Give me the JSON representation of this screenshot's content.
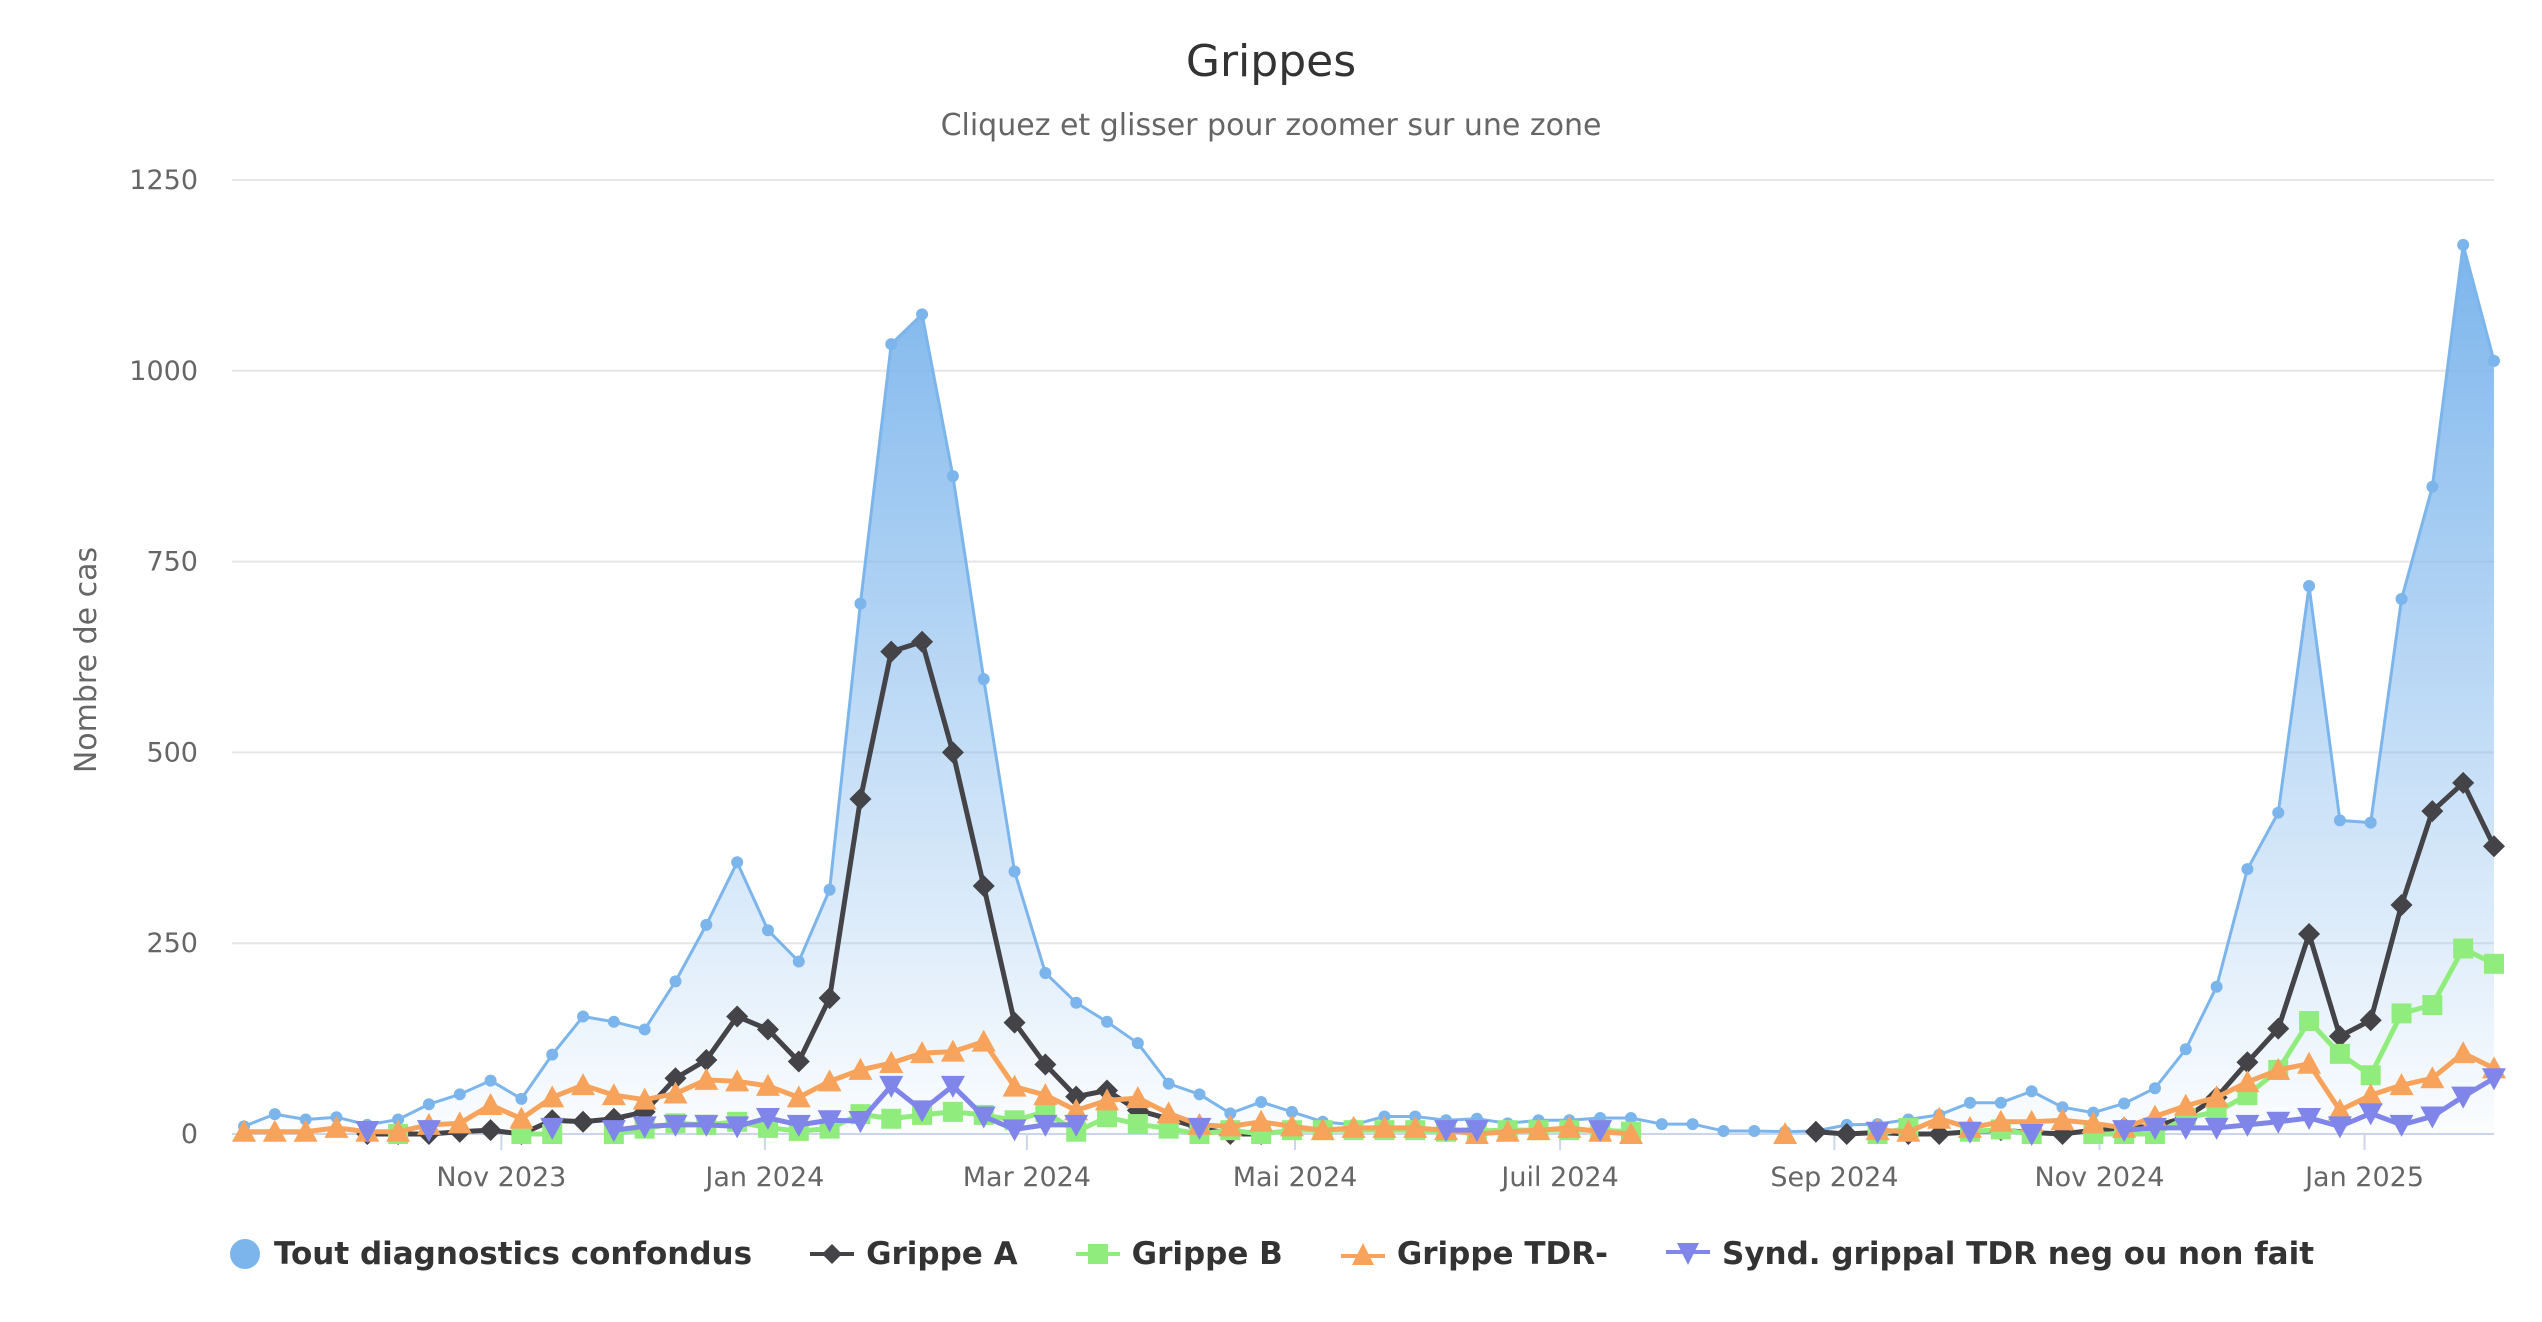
{
  "header": {
    "title": "Grippes",
    "subtitle": "Cliquez et glisser pour zoomer sur une zone"
  },
  "chart_data": {
    "type": "line",
    "title": "Grippes",
    "subtitle": "Cliquez et glisser pour zoomer sur une zone",
    "xlabel": "",
    "ylabel": "Nombre de cas",
    "ylim": [
      0,
      1250
    ],
    "yticks": [
      0,
      250,
      500,
      750,
      1000,
      1250
    ],
    "grid": true,
    "legend_position": "bottom",
    "x_unit": "weekly",
    "x_count": 74,
    "x_start_approx": "2023-09-04",
    "x_tick_labels": [
      {
        "label": "Nov 2023",
        "index": 8.35
      },
      {
        "label": "Jan 2024",
        "index": 16.9
      },
      {
        "label": "Mar 2024",
        "index": 25.4
      },
      {
        "label": "Mai 2024",
        "index": 34.1
      },
      {
        "label": "Juil 2024",
        "index": 42.7
      },
      {
        "label": "Sep 2024",
        "index": 51.6
      },
      {
        "label": "Nov 2024",
        "index": 60.2
      },
      {
        "label": "Jan 2025",
        "index": 68.8
      }
    ],
    "series": [
      {
        "name": "Tout diagnostics confondus",
        "color": "#7cb5ec",
        "marker": "circle",
        "area": true,
        "values": [
          10,
          26,
          19,
          22,
          12,
          19,
          39,
          52,
          70,
          46,
          104,
          154,
          147,
          137,
          200,
          274,
          356,
          267,
          226,
          320,
          695,
          1035,
          1074,
          862,
          596,
          344,
          211,
          172,
          147,
          119,
          66,
          52,
          27,
          42,
          29,
          16,
          12,
          23,
          23,
          18,
          20,
          14,
          18,
          18,
          21,
          21,
          13,
          13,
          4,
          4,
          3,
          4,
          12,
          13,
          19,
          25,
          41,
          41,
          56,
          35,
          28,
          40,
          60,
          111,
          193,
          347,
          421,
          718,
          411,
          408,
          701,
          848,
          1165,
          1013
        ]
      },
      {
        "name": "Grippe A",
        "color": "#434348",
        "marker": "diamond",
        "values": [
          null,
          null,
          null,
          null,
          0,
          0,
          0,
          3,
          5,
          0,
          18,
          16,
          20,
          29,
          73,
          97,
          154,
          137,
          95,
          178,
          439,
          632,
          645,
          500,
          325,
          146,
          91,
          49,
          57,
          31,
          20,
          8,
          0,
          0,
          null,
          null,
          null,
          null,
          null,
          null,
          null,
          null,
          null,
          null,
          null,
          null,
          null,
          null,
          null,
          null,
          null,
          3,
          0,
          2,
          0,
          0,
          3,
          5,
          2,
          0,
          5,
          8,
          10,
          22,
          48,
          94,
          138,
          262,
          128,
          149,
          300,
          423,
          460,
          377
        ]
      },
      {
        "name": "Grippe B",
        "color": "#90ed7d",
        "marker": "square",
        "values": [
          null,
          null,
          null,
          null,
          null,
          0,
          null,
          null,
          null,
          0,
          0,
          null,
          0,
          7,
          14,
          12,
          16,
          8,
          4,
          7,
          26,
          20,
          25,
          29,
          25,
          18,
          29,
          3,
          22,
          13,
          7,
          0,
          5,
          0,
          5,
          5,
          5,
          5,
          5,
          3,
          4,
          5,
          5,
          5,
          5,
          3,
          null,
          null,
          null,
          null,
          null,
          null,
          null,
          0,
          8,
          null,
          3,
          6,
          0,
          null,
          0,
          0,
          0,
          21,
          29,
          51,
          84,
          148,
          105,
          77,
          158,
          169,
          243,
          223
        ]
      },
      {
        "name": "Grippe TDR-",
        "color": "#f7a35c",
        "marker": "triangle",
        "values": [
          3,
          3,
          3,
          8,
          3,
          3,
          12,
          14,
          38,
          20,
          48,
          64,
          51,
          45,
          53,
          71,
          69,
          63,
          48,
          69,
          84,
          93,
          106,
          108,
          121,
          62,
          51,
          31,
          44,
          47,
          27,
          12,
          10,
          16,
          10,
          5,
          8,
          8,
          8,
          5,
          0,
          3,
          5,
          8,
          3,
          0,
          null,
          null,
          null,
          null,
          0,
          null,
          null,
          5,
          3,
          20,
          8,
          16,
          16,
          18,
          14,
          8,
          23,
          37,
          48,
          68,
          84,
          92,
          31,
          51,
          64,
          73,
          106,
          86
        ]
      },
      {
        "name": "Synd. grippal TDR neg ou non fait",
        "color": "#8085e9",
        "marker": "triangle-down",
        "values": [
          null,
          null,
          null,
          null,
          4,
          null,
          5,
          null,
          null,
          null,
          8,
          null,
          5,
          10,
          12,
          12,
          10,
          21,
          12,
          18,
          17,
          63,
          31,
          63,
          23,
          6,
          12,
          12,
          null,
          null,
          null,
          8,
          null,
          null,
          null,
          null,
          null,
          null,
          null,
          5,
          5,
          null,
          null,
          null,
          5,
          null,
          null,
          null,
          null,
          null,
          null,
          null,
          null,
          3,
          null,
          null,
          3,
          null,
          0,
          null,
          null,
          5,
          8,
          8,
          8,
          12,
          16,
          21,
          10,
          27,
          12,
          23,
          49,
          73
        ]
      }
    ]
  },
  "legend": {
    "items": [
      {
        "label": "Tout diagnostics confondus",
        "icon": "circle-icon"
      },
      {
        "label": "Grippe A",
        "icon": "diamond-icon"
      },
      {
        "label": "Grippe B",
        "icon": "square-icon"
      },
      {
        "label": "Grippe TDR-",
        "icon": "triangle-icon"
      },
      {
        "label": "Synd. grippal TDR neg ou non fait",
        "icon": "triangle-down-icon"
      }
    ]
  }
}
